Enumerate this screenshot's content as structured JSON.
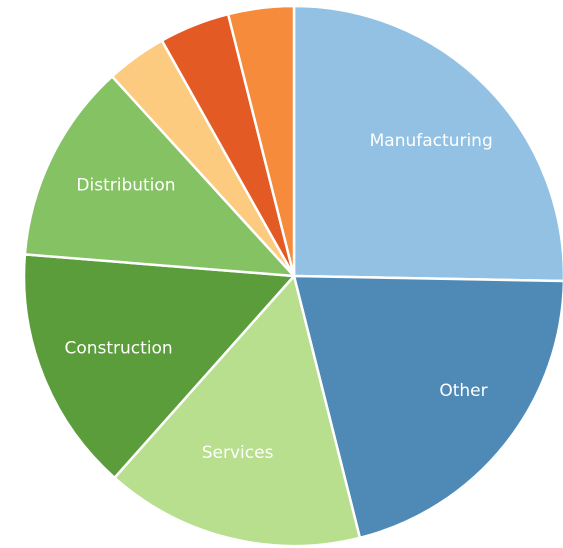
{
  "chart_data": {
    "type": "pie",
    "title": "",
    "start_angle_deg": 0,
    "direction": "clockwise",
    "slice_stroke": "#ffffff",
    "label_color": "#ffffff",
    "slices": [
      {
        "label": "Manufacturing",
        "value": 25.8,
        "color": "#92c1e3"
      },
      {
        "label": "Other",
        "value": 21.2,
        "color": "#4f8ab7"
      },
      {
        "label": "Services",
        "value": 15.8,
        "color": "#b7df8d"
      },
      {
        "label": "Construction",
        "value": 15.0,
        "color": "#5a9d3a"
      },
      {
        "label": "Distribution",
        "value": 12.2,
        "color": "#84c263"
      },
      {
        "label": "",
        "value": 3.7,
        "color": "#fccb80"
      },
      {
        "label": "",
        "value": 4.3,
        "color": "#e45a24"
      },
      {
        "label": "",
        "value": 4.0,
        "color": "#f58b3b"
      }
    ]
  }
}
